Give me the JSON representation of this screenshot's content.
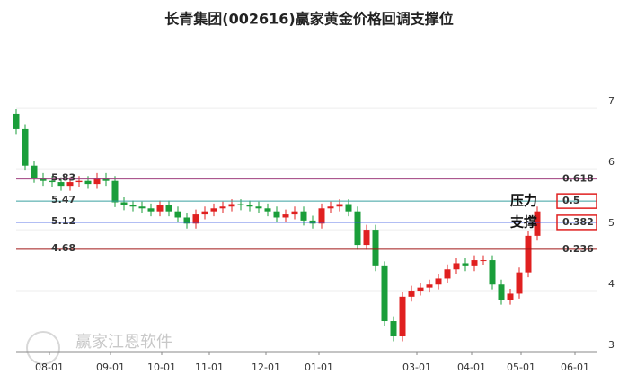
{
  "chart_data": {
    "type": "candlestick",
    "title": "长青集团(002616)赢家黄金价格回调支撑位",
    "watermark": "赢家江恩软件",
    "up_color": "#e02020",
    "down_color": "#1a9e3a",
    "grid": true,
    "open": [
      6.9,
      6.65,
      6.05,
      5.85,
      5.8,
      5.78,
      5.72,
      5.78,
      5.8,
      5.75,
      5.85,
      5.8,
      5.45,
      5.4,
      5.38,
      5.35,
      5.3,
      5.4,
      5.3,
      5.2,
      5.1,
      5.25,
      5.3,
      5.35,
      5.38,
      5.42,
      5.4,
      5.38,
      5.35,
      5.3,
      5.2,
      5.25,
      5.3,
      5.15,
      5.1,
      5.35,
      5.38,
      5.42,
      5.3,
      4.75,
      5.0,
      4.4,
      3.5,
      3.25,
      3.9,
      4.0,
      4.05,
      4.1,
      4.2,
      4.35,
      4.45,
      4.4,
      4.5,
      4.5,
      4.1,
      3.85,
      3.95,
      4.3,
      4.9
    ],
    "close": [
      6.65,
      6.05,
      5.85,
      5.8,
      5.78,
      5.72,
      5.78,
      5.8,
      5.75,
      5.85,
      5.8,
      5.45,
      5.4,
      5.38,
      5.35,
      5.3,
      5.4,
      5.3,
      5.2,
      5.1,
      5.25,
      5.3,
      5.35,
      5.38,
      5.42,
      5.4,
      5.38,
      5.35,
      5.3,
      5.2,
      5.25,
      5.3,
      5.15,
      5.1,
      5.35,
      5.38,
      5.42,
      5.3,
      4.75,
      5.0,
      4.4,
      3.5,
      3.25,
      3.9,
      4.0,
      4.05,
      4.1,
      4.2,
      4.35,
      4.45,
      4.4,
      4.5,
      4.5,
      4.1,
      3.85,
      3.95,
      4.3,
      4.9,
      5.3
    ],
    "high": [
      6.98,
      6.73,
      6.13,
      5.93,
      5.88,
      5.86,
      5.86,
      5.88,
      5.88,
      5.93,
      5.93,
      5.88,
      5.53,
      5.48,
      5.46,
      5.43,
      5.48,
      5.48,
      5.38,
      5.28,
      5.33,
      5.38,
      5.43,
      5.46,
      5.5,
      5.5,
      5.48,
      5.46,
      5.43,
      5.38,
      5.33,
      5.38,
      5.38,
      5.23,
      5.43,
      5.46,
      5.5,
      5.5,
      5.38,
      5.08,
      5.08,
      4.48,
      3.58,
      3.98,
      4.08,
      4.13,
      4.18,
      4.28,
      4.43,
      4.53,
      4.53,
      4.58,
      4.58,
      4.58,
      4.18,
      4.03,
      4.38,
      4.98,
      5.38
    ],
    "low": [
      6.57,
      5.97,
      5.77,
      5.72,
      5.7,
      5.64,
      5.64,
      5.7,
      5.67,
      5.67,
      5.72,
      5.37,
      5.32,
      5.3,
      5.27,
      5.22,
      5.22,
      5.22,
      5.12,
      5.02,
      5.02,
      5.17,
      5.22,
      5.27,
      5.3,
      5.32,
      5.3,
      5.27,
      5.22,
      5.12,
      5.12,
      5.17,
      5.07,
      5.02,
      5.02,
      5.27,
      5.3,
      5.22,
      4.67,
      4.67,
      4.32,
      3.42,
      3.17,
      3.17,
      3.82,
      3.92,
      3.97,
      4.02,
      4.12,
      4.27,
      4.32,
      4.32,
      4.42,
      4.02,
      3.77,
      3.77,
      3.87,
      4.22,
      4.82
    ],
    "xlim": [
      0,
      64.7
    ],
    "xticks": [
      {
        "value": 3.7,
        "label": "08-01"
      },
      {
        "value": 10.5,
        "label": "09-01"
      },
      {
        "value": 16.2,
        "label": "10-01"
      },
      {
        "value": 21.5,
        "label": "11-01"
      },
      {
        "value": 27.8,
        "label": "12-01"
      },
      {
        "value": 33.7,
        "label": "01-01"
      },
      {
        "value": 44.6,
        "label": "03-01"
      },
      {
        "value": 50.7,
        "label": "04-01"
      },
      {
        "value": 56.2,
        "label": "05-01"
      },
      {
        "value": 62.2,
        "label": "06-01"
      }
    ],
    "ylim": [
      3.0,
      7.37
    ],
    "yticks": [
      3,
      4,
      5,
      6,
      7
    ],
    "levels": [
      {
        "name": "0.618",
        "value": 5.83,
        "color": "#a0407f",
        "boxed": false
      },
      {
        "name": "0.5",
        "value": 5.47,
        "color": "#3aa0a0",
        "boxed": true
      },
      {
        "name": "0.382",
        "value": 5.12,
        "color": "#3050e0",
        "boxed": true
      },
      {
        "name": "0.236",
        "value": 4.68,
        "color": "#a01818",
        "boxed": false
      }
    ],
    "annotations": [
      {
        "text": "压力",
        "level": 1
      },
      {
        "text": "支撑",
        "level": 2
      }
    ]
  }
}
